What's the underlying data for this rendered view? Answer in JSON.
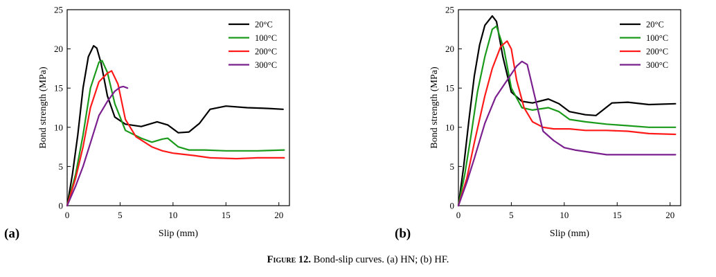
{
  "caption": {
    "label": "Figure 12.",
    "text": "Bond-slip curves. (a) HN; (b) HF."
  },
  "chart_data": [
    {
      "type": "line",
      "panel_label": "(a)",
      "xlabel": "Slip (mm)",
      "ylabel": "Bond strength (MPa)",
      "xlim": [
        0,
        21
      ],
      "ylim": [
        0,
        25
      ],
      "xticks": [
        0,
        5,
        10,
        15,
        20
      ],
      "yticks": [
        0,
        5,
        10,
        15,
        20,
        25
      ],
      "legend_position": "top-right",
      "series": [
        {
          "name": "20°C",
          "color": "#000000",
          "x": [
            0,
            0.5,
            1.0,
            1.5,
            2.0,
            2.5,
            2.8,
            3.2,
            3.8,
            4.5,
            5.5,
            7,
            8.5,
            9.5,
            10.5,
            11.5,
            12.5,
            13.5,
            15,
            17,
            19,
            20.4
          ],
          "y": [
            0,
            4,
            9,
            15,
            19,
            20.4,
            20.1,
            18.2,
            14,
            11.3,
            10.4,
            10.1,
            10.7,
            10.3,
            9.3,
            9.4,
            10.5,
            12.3,
            12.7,
            12.5,
            12.4,
            12.3
          ]
        },
        {
          "name": "100°C",
          "color": "#1a9a1a",
          "x": [
            0,
            0.8,
            1.5,
            2.2,
            3.0,
            3.3,
            3.8,
            4.5,
            5.5,
            7,
            8,
            9,
            9.5,
            10.5,
            11.5,
            13,
            15,
            18,
            20.5
          ],
          "y": [
            0,
            4,
            9,
            15,
            18.3,
            18.5,
            17,
            13,
            9.6,
            8.6,
            8.1,
            8.5,
            8.6,
            7.5,
            7.1,
            7.1,
            7.0,
            7.0,
            7.1
          ]
        },
        {
          "name": "200°C",
          "color": "#ff1a1a",
          "x": [
            0,
            0.8,
            1.5,
            2.2,
            3.0,
            3.8,
            4.2,
            4.8,
            5.5,
            6.5,
            8,
            9,
            10,
            12,
            13.5,
            16,
            18,
            20.5
          ],
          "y": [
            0,
            3.5,
            7.5,
            12.5,
            15.8,
            16.9,
            17.2,
            15.5,
            11,
            8.8,
            7.5,
            7.0,
            6.7,
            6.4,
            6.1,
            6.0,
            6.1,
            6.1
          ]
        },
        {
          "name": "300°C",
          "color": "#7a1f8e",
          "x": [
            0,
            0.8,
            1.5,
            2.2,
            3.0,
            3.8,
            4.5,
            5.0,
            5.3,
            5.7
          ],
          "y": [
            0,
            2.5,
            5,
            8,
            11.5,
            13.3,
            14.6,
            15.1,
            15.2,
            15.0
          ]
        }
      ]
    },
    {
      "type": "line",
      "panel_label": "(b)",
      "xlabel": "Slip (mm)",
      "ylabel": "Bond strength (MPa)",
      "xlim": [
        0,
        21
      ],
      "ylim": [
        0,
        25
      ],
      "xticks": [
        0,
        5,
        10,
        15,
        20
      ],
      "yticks": [
        0,
        5,
        10,
        15,
        20,
        25
      ],
      "legend_position": "top-right",
      "series": [
        {
          "name": "20°C",
          "color": "#000000",
          "x": [
            0,
            0.5,
            1.0,
            1.5,
            2.0,
            2.5,
            3.2,
            3.6,
            4.2,
            5,
            6,
            7,
            8.5,
            9.5,
            10.5,
            12,
            13,
            14.5,
            16,
            18,
            20.5
          ],
          "y": [
            0,
            5,
            11,
            16.5,
            20.5,
            23,
            24.2,
            23.5,
            19,
            14.5,
            13.3,
            13.1,
            13.6,
            13.0,
            12.0,
            11.6,
            11.5,
            13.1,
            13.2,
            12.9,
            13.0
          ]
        },
        {
          "name": "100°C",
          "color": "#1a9a1a",
          "x": [
            0,
            0.6,
            1.2,
            1.8,
            2.5,
            3.2,
            3.6,
            4.3,
            5,
            6,
            7,
            8.5,
            9.5,
            10.5,
            12,
            14,
            16,
            18,
            20.5
          ],
          "y": [
            0,
            4,
            9,
            14.5,
            19,
            22.5,
            22.9,
            20,
            15,
            12.5,
            12.2,
            12.5,
            12.0,
            11.0,
            10.7,
            10.4,
            10.2,
            10.0,
            10.0
          ]
        },
        {
          "name": "200°C",
          "color": "#ff1a1a",
          "x": [
            0,
            0.8,
            1.5,
            2.5,
            3.2,
            4.0,
            4.6,
            5.0,
            5.5,
            6.2,
            7,
            8,
            9,
            10.5,
            12,
            14,
            16,
            18,
            20.5
          ],
          "y": [
            0,
            3.5,
            8,
            14,
            17.5,
            20.3,
            21.0,
            20,
            16,
            12.5,
            10.7,
            10.0,
            9.8,
            9.8,
            9.6,
            9.6,
            9.5,
            9.2,
            9.1
          ]
        },
        {
          "name": "300°C",
          "color": "#7a1f8e",
          "x": [
            0,
            0.8,
            1.5,
            2.5,
            3.5,
            4.5,
            5.5,
            6.0,
            6.5,
            7.2,
            8,
            9,
            10,
            11,
            12.5,
            14,
            16,
            18,
            20.5
          ],
          "y": [
            0,
            3,
            6,
            10.5,
            13.8,
            15.8,
            17.8,
            18.4,
            18.0,
            14,
            9.5,
            8.3,
            7.4,
            7.1,
            6.8,
            6.5,
            6.5,
            6.5,
            6.5
          ]
        }
      ]
    }
  ]
}
